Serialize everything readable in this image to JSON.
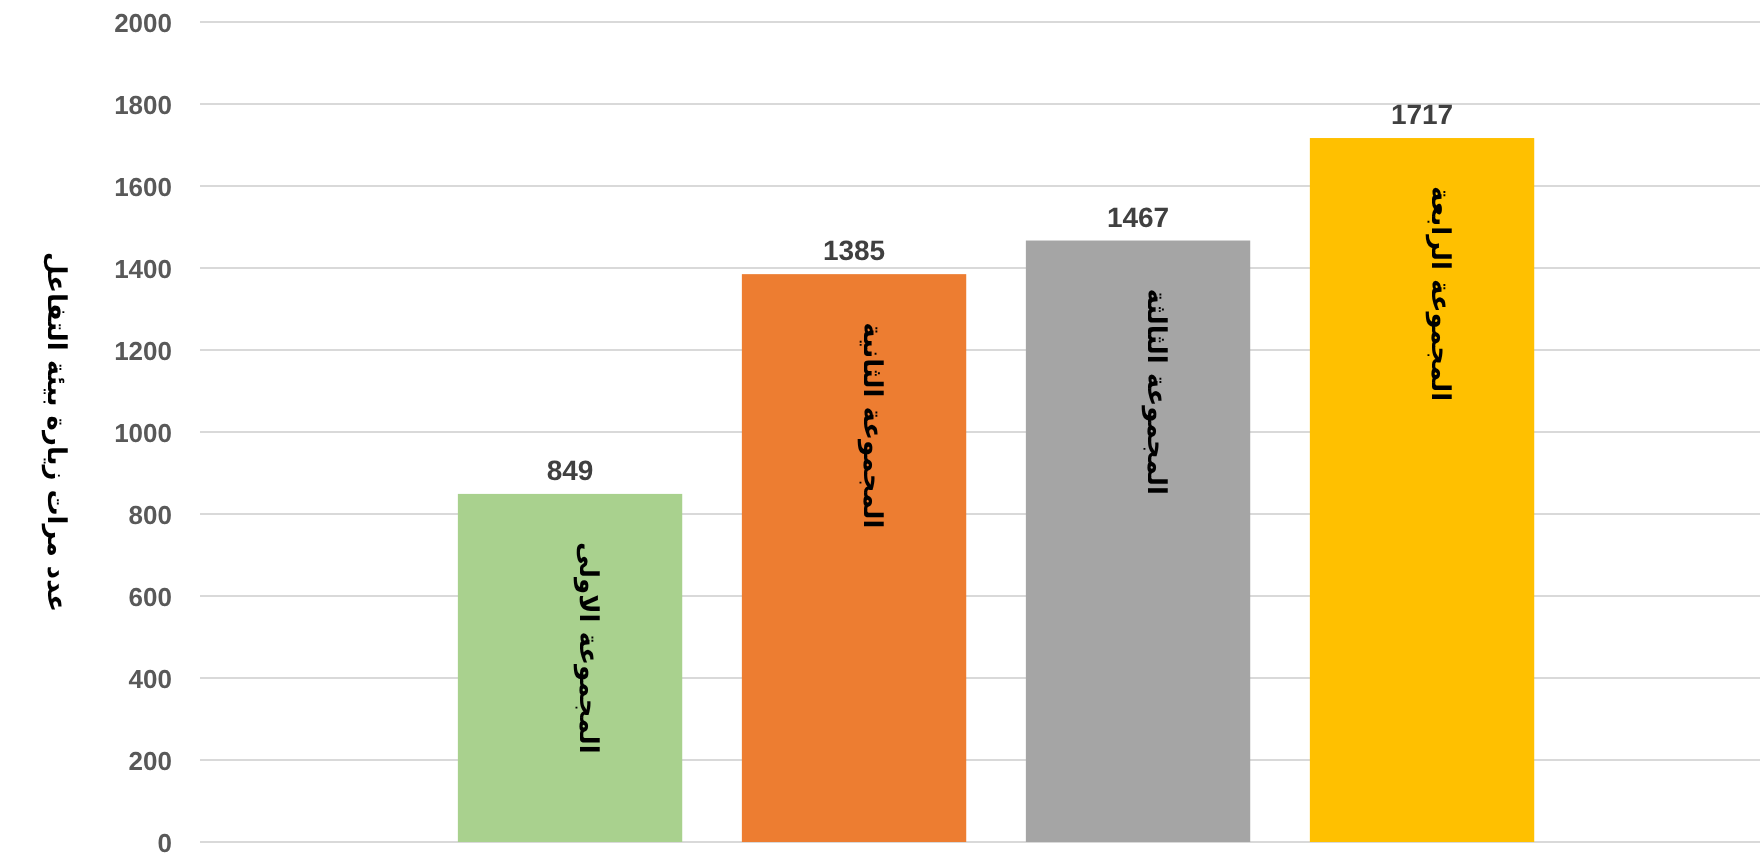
{
  "chart_data": {
    "type": "bar",
    "ylabel": "عدد مرات زيارة بيئة التفاعل",
    "categories": [
      "المجموعة الاولى",
      "المجموعة الثانية",
      "المجموعة الثالثة",
      "المجموعة الرابعة"
    ],
    "values": [
      849,
      1385,
      1467,
      1717
    ],
    "colors": [
      "#a9d18e",
      "#ed7d31",
      "#a5a5a5",
      "#ffc000"
    ],
    "ylim": [
      0,
      2000
    ],
    "yticks": [
      0,
      200,
      400,
      600,
      800,
      1000,
      1200,
      1400,
      1600,
      1800,
      2000
    ],
    "grid": "y",
    "data_labels": true
  }
}
